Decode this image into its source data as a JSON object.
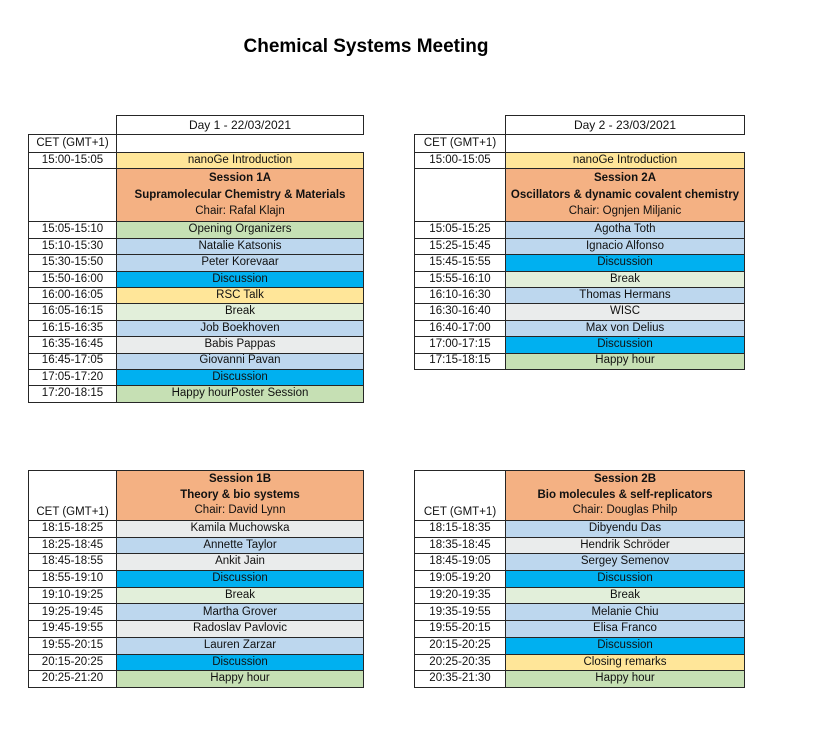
{
  "page": {
    "title": "Chemical Systems Meeting"
  },
  "colors": {
    "yellow": "#FFE699",
    "orange": "#F4B183",
    "green": "#C6E0B4",
    "light_green": "#E2EFDA",
    "blue": "#BDD7EE",
    "bright_blue": "#00B0F0",
    "gray": "#EAECEC",
    "white": "#FFFFFF"
  },
  "tables": [
    {
      "layout": "top",
      "day_header": "Day 1 - 22/03/2021",
      "cet_label": "CET (GMT+1)",
      "pre_session_rows": [
        {
          "time": "15:00-15:05",
          "label": "nanoGe Introduction",
          "color": "yellow"
        }
      ],
      "session": {
        "title": "Session 1A",
        "topic": "Supramolecular Chemistry & Materials",
        "chair": "Chair: Rafal Klajn",
        "color": "orange"
      },
      "rows": [
        {
          "time": "15:05-15:10",
          "label": "Opening Organizers",
          "color": "green"
        },
        {
          "time": "15:10-15:30",
          "label": "Natalie Katsonis",
          "color": "blue"
        },
        {
          "time": "15:30-15:50",
          "label": "Peter Korevaar",
          "color": "blue"
        },
        {
          "time": "15:50-16:00",
          "label": "Discussion",
          "color": "bright_blue"
        },
        {
          "time": "16:00-16:05",
          "label": "RSC Talk",
          "color": "yellow"
        },
        {
          "time": "16:05-16:15",
          "label": "Break",
          "color": "light_green"
        },
        {
          "time": "16:15-16:35",
          "label": "Job Boekhoven",
          "color": "blue"
        },
        {
          "time": "16:35-16:45",
          "label": "Babis Pappas",
          "color": "gray"
        },
        {
          "time": "16:45-17:05",
          "label": "Giovanni Pavan",
          "color": "blue"
        },
        {
          "time": "17:05-17:20",
          "label": "Discussion",
          "color": "bright_blue"
        },
        {
          "time": "17:20-18:15",
          "label": "Happy hourPoster Session",
          "color": "green"
        }
      ]
    },
    {
      "layout": "top",
      "day_header": "Day 2 - 23/03/2021",
      "cet_label": "CET (GMT+1)",
      "pre_session_rows": [
        {
          "time": "15:00-15:05",
          "label": "nanoGe Introduction",
          "color": "yellow"
        }
      ],
      "session": {
        "title": "Session 2A",
        "topic": "Oscillators & dynamic covalent chemistry",
        "chair": "Chair: Ognjen Miljanic",
        "color": "orange"
      },
      "rows": [
        {
          "time": "15:05-15:25",
          "label": "Agotha Toth",
          "color": "blue"
        },
        {
          "time": "15:25-15:45",
          "label": "Ignacio Alfonso",
          "color": "blue"
        },
        {
          "time": "15:45-15:55",
          "label": "Discussion",
          "color": "bright_blue"
        },
        {
          "time": "15:55-16:10",
          "label": "Break",
          "color": "light_green"
        },
        {
          "time": "16:10-16:30",
          "label": "Thomas Hermans",
          "color": "blue"
        },
        {
          "time": "16:30-16:40",
          "label": "WISC",
          "color": "gray"
        },
        {
          "time": "16:40-17:00",
          "label": "Max von Delius",
          "color": "blue"
        },
        {
          "time": "17:00-17:15",
          "label": "Discussion",
          "color": "bright_blue"
        },
        {
          "time": "17:15-18:15",
          "label": "Happy hour",
          "color": "green"
        }
      ]
    },
    {
      "layout": "bottom",
      "day_header": null,
      "cet_label": "CET (GMT+1)",
      "pre_session_rows": [],
      "session": {
        "title": "Session 1B",
        "topic": "Theory & bio systems",
        "chair": "Chair: David Lynn",
        "color": "orange"
      },
      "rows": [
        {
          "time": "18:15-18:25",
          "label": "Kamila Muchowska",
          "color": "gray"
        },
        {
          "time": "18:25-18:45",
          "label": "Annette Taylor",
          "color": "blue"
        },
        {
          "time": "18:45-18:55",
          "label": "Ankit Jain",
          "color": "gray"
        },
        {
          "time": "18:55-19:10",
          "label": "Discussion",
          "color": "bright_blue"
        },
        {
          "time": "19:10-19:25",
          "label": "Break",
          "color": "light_green"
        },
        {
          "time": "19:25-19:45",
          "label": "Martha Grover",
          "color": "blue"
        },
        {
          "time": "19:45-19:55",
          "label": "Radoslav Pavlovic",
          "color": "gray"
        },
        {
          "time": "19:55-20:15",
          "label": "Lauren Zarzar",
          "color": "blue"
        },
        {
          "time": "20:15-20:25",
          "label": "Discussion",
          "color": "bright_blue"
        },
        {
          "time": "20:25-21:20",
          "label": "Happy hour",
          "color": "green"
        }
      ]
    },
    {
      "layout": "bottom",
      "day_header": null,
      "cet_label": "CET (GMT+1)",
      "pre_session_rows": [],
      "session": {
        "title": "Session 2B",
        "topic": "Bio molecules & self-replicators",
        "chair": "Chair: Douglas Philp",
        "color": "orange"
      },
      "rows": [
        {
          "time": "18:15-18:35",
          "label": "Dibyendu Das",
          "color": "blue"
        },
        {
          "time": "18:35-18:45",
          "label": "Hendrik Schröder",
          "color": "gray"
        },
        {
          "time": "18:45-19:05",
          "label": "Sergey Semenov",
          "color": "blue"
        },
        {
          "time": "19:05-19:20",
          "label": "Discussion",
          "color": "bright_blue"
        },
        {
          "time": "19:20-19:35",
          "label": "Break",
          "color": "light_green"
        },
        {
          "time": "19:35-19:55",
          "label": "Melanie Chiu",
          "color": "blue"
        },
        {
          "time": "19:55-20:15",
          "label": "Elisa Franco",
          "color": "blue"
        },
        {
          "time": "20:15-20:25",
          "label": "Discussion",
          "color": "bright_blue"
        },
        {
          "time": "20:25-20:35",
          "label": "Closing remarks",
          "color": "yellow"
        },
        {
          "time": "20:35-21:30",
          "label": "Happy hour",
          "color": "green"
        }
      ]
    }
  ]
}
